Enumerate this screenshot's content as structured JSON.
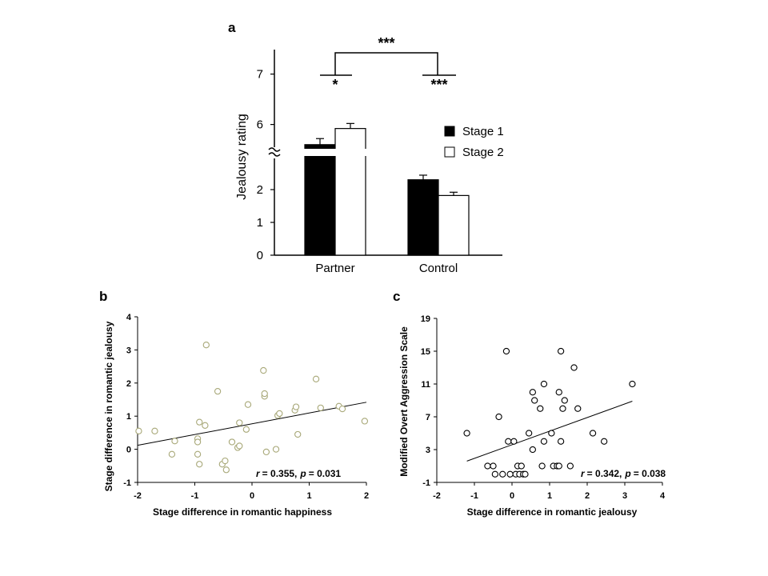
{
  "panel_labels": {
    "a": "a",
    "b": "b",
    "c": "c"
  },
  "chart_data": [
    {
      "panel": "a",
      "type": "bar",
      "ylabel": "Jealousy rating",
      "categories": [
        "Partner",
        "Control"
      ],
      "series": [
        {
          "name": "Stage 1",
          "values": [
            5.6,
            2.3
          ],
          "errors": [
            0.12,
            0.14
          ],
          "fill": "#000000"
        },
        {
          "name": "Stage 2",
          "values": [
            5.92,
            1.82
          ],
          "errors": [
            0.1,
            0.1
          ],
          "fill": "#ffffff"
        }
      ],
      "yticks": [
        "0",
        "1",
        "2",
        "6",
        "7"
      ],
      "axis_break": true,
      "ylim": [
        0,
        7
      ],
      "significance": {
        "between": "***",
        "partner": "*",
        "control": "***"
      }
    },
    {
      "panel": "b",
      "type": "scatter",
      "xlabel": "Stage difference in romantic happiness",
      "ylabel": "Stage difference in romantic jealousy",
      "xlim": [
        -2,
        2
      ],
      "ylim": [
        -1,
        4
      ],
      "xticks": [
        "-2",
        "-1",
        "0",
        "1",
        "2"
      ],
      "yticks": [
        "-1",
        "0",
        "1",
        "2",
        "3",
        "4"
      ],
      "annotation": {
        "r_label": "r",
        "r_value": "= 0.355,",
        "p_label": "p",
        "p_value": "= 0.031"
      },
      "marker_color": "#a8a878",
      "fit_line": {
        "x": [
          -2,
          2
        ],
        "y": [
          0.12,
          1.42
        ]
      },
      "points": [
        [
          -1.98,
          0.55
        ],
        [
          -1.7,
          0.55
        ],
        [
          -1.35,
          0.25
        ],
        [
          -1.4,
          -0.15
        ],
        [
          -0.92,
          0.82
        ],
        [
          -0.95,
          0.32
        ],
        [
          -0.95,
          0.22
        ],
        [
          -0.95,
          -0.15
        ],
        [
          -0.92,
          -0.45
        ],
        [
          -0.82,
          0.72
        ],
        [
          -0.8,
          3.15
        ],
        [
          -0.6,
          1.75
        ],
        [
          -0.52,
          -0.45
        ],
        [
          -0.47,
          -0.35
        ],
        [
          -0.45,
          -0.62
        ],
        [
          -0.35,
          0.22
        ],
        [
          -0.25,
          0.05
        ],
        [
          -0.22,
          0.1
        ],
        [
          -0.22,
          0.8
        ],
        [
          -0.1,
          0.6
        ],
        [
          -0.07,
          1.35
        ],
        [
          0.2,
          2.38
        ],
        [
          0.22,
          1.6
        ],
        [
          0.22,
          1.68
        ],
        [
          0.25,
          -0.08
        ],
        [
          0.42,
          0.0
        ],
        [
          0.45,
          1.02
        ],
        [
          0.48,
          1.08
        ],
        [
          0.75,
          1.18
        ],
        [
          0.77,
          1.28
        ],
        [
          0.8,
          0.45
        ],
        [
          1.12,
          2.12
        ],
        [
          1.2,
          1.25
        ],
        [
          1.52,
          1.3
        ],
        [
          1.58,
          1.22
        ],
        [
          1.97,
          0.85
        ]
      ]
    },
    {
      "panel": "c",
      "type": "scatter",
      "xlabel": "Stage difference in romantic jealousy",
      "ylabel": "Modified Overt Aggression Scale",
      "xlim": [
        -2,
        4
      ],
      "ylim": [
        -1,
        19
      ],
      "xticks": [
        "-2",
        "-1",
        "0",
        "1",
        "2",
        "3",
        "4"
      ],
      "yticks": [
        "-1",
        "3",
        "7",
        "11",
        "15",
        "19"
      ],
      "annotation": {
        "r_label": "r",
        "r_value": "= 0.342,",
        "p_label": "p",
        "p_value": "= 0.038"
      },
      "marker_color": "#000000",
      "fit_line": {
        "x": [
          -1.2,
          3.2
        ],
        "y": [
          1.6,
          8.9
        ]
      },
      "points": [
        [
          -1.2,
          5
        ],
        [
          -0.65,
          1
        ],
        [
          -0.5,
          1
        ],
        [
          -0.45,
          0
        ],
        [
          -0.35,
          7
        ],
        [
          -0.25,
          0
        ],
        [
          -0.15,
          15
        ],
        [
          -0.1,
          4
        ],
        [
          -0.05,
          0
        ],
        [
          0.05,
          4
        ],
        [
          0.1,
          0
        ],
        [
          0.15,
          1
        ],
        [
          0.2,
          0
        ],
        [
          0.25,
          1
        ],
        [
          0.3,
          0
        ],
        [
          0.35,
          0
        ],
        [
          0.45,
          5
        ],
        [
          0.55,
          10
        ],
        [
          0.6,
          9
        ],
        [
          0.55,
          3
        ],
        [
          0.75,
          8
        ],
        [
          0.8,
          1
        ],
        [
          0.85,
          11
        ],
        [
          0.85,
          4
        ],
        [
          1.05,
          5
        ],
        [
          1.1,
          1
        ],
        [
          1.2,
          1
        ],
        [
          1.25,
          10
        ],
        [
          1.25,
          1
        ],
        [
          1.3,
          4
        ],
        [
          1.3,
          15
        ],
        [
          1.35,
          8
        ],
        [
          1.4,
          9
        ],
        [
          1.55,
          1
        ],
        [
          1.65,
          13
        ],
        [
          1.75,
          8
        ],
        [
          2.15,
          5
        ],
        [
          2.45,
          4
        ],
        [
          3.2,
          11
        ]
      ]
    }
  ]
}
